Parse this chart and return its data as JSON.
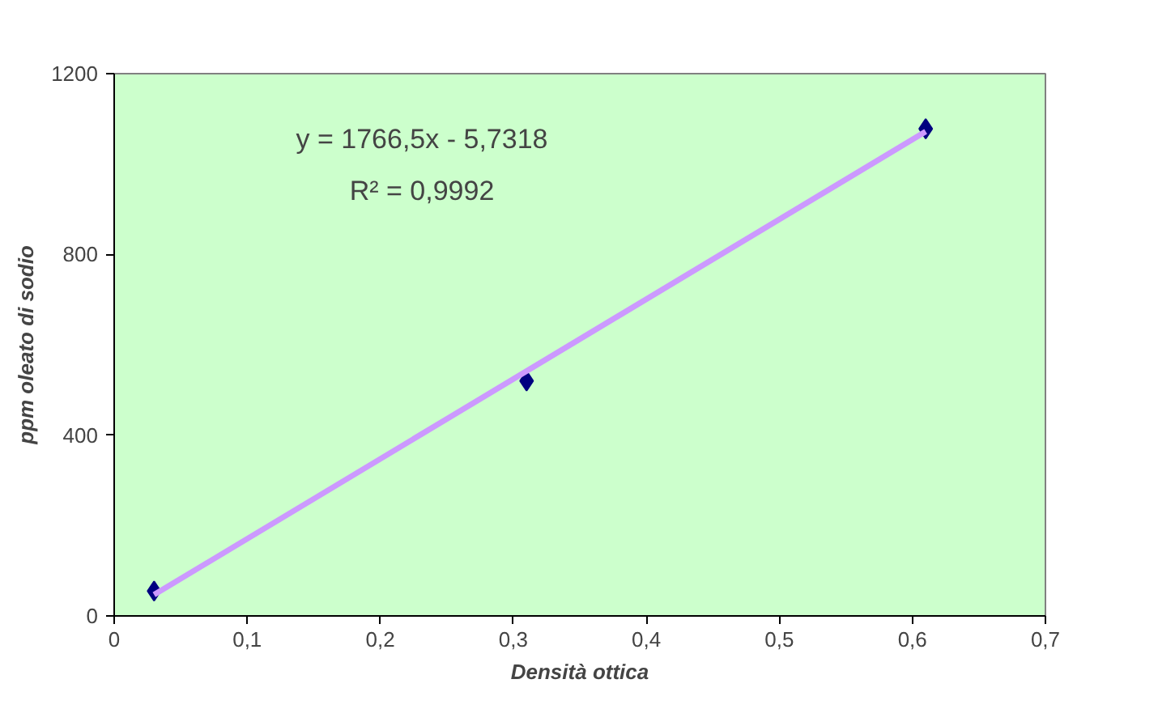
{
  "chart_data": {
    "type": "scatter",
    "xlabel": "Densità ottica",
    "ylabel": "ppm oleato di sodio",
    "series": [
      {
        "color": "#000080",
        "x": [
          0.03,
          0.31,
          0.61
        ],
        "values": [
          55,
          520,
          1078
        ],
        "marker": "diamond"
      },
      {
        "type": "line",
        "color": "#cc99ff",
        "x": [
          0.03,
          0.61
        ],
        "values": [
          47,
          1072
        ],
        "line_style": "solid"
      }
    ],
    "xlim": [
      0,
      0.7
    ],
    "ylim": [
      0,
      1200
    ],
    "xticks": [
      0,
      {
        "value": 0.1,
        "label": "0,1"
      },
      {
        "value": 0.2,
        "label": "0,2"
      },
      {
        "value": 0.3,
        "label": "0,3"
      },
      {
        "value": 0.4,
        "label": "0,4"
      },
      {
        "value": 0.5,
        "label": "0,5"
      },
      {
        "value": 0.6,
        "label": "0,6"
      },
      {
        "value": 0.7,
        "label": "0,7"
      }
    ],
    "yticks": [
      0,
      400,
      800,
      1200
    ],
    "annotations": [
      "y = 1766,5x - 5,7318",
      "R² = 0,9992"
    ],
    "grid": false
  }
}
